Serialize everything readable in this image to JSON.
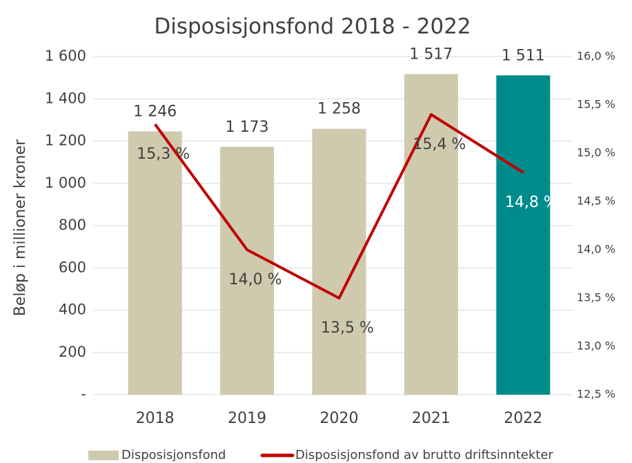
{
  "chart_data": {
    "type": "bar",
    "title": "Disposisjonsfond 2018 - 2022",
    "y_axis_label": "Beløp i millioner kroner",
    "categories": [
      "2018",
      "2019",
      "2020",
      "2021",
      "2022"
    ],
    "series": [
      {
        "name": "Disposisjonsfond",
        "type": "bar",
        "color": "#cfc9ae",
        "colors": [
          "#cfc9ae",
          "#cfc9ae",
          "#cfc9ae",
          "#cfc9ae",
          "#008b8b"
        ],
        "values": [
          1246,
          1173,
          1258,
          1517,
          1511
        ],
        "value_labels": [
          "1 246",
          "1 173",
          "1 258",
          "1 517",
          "1 511"
        ]
      },
      {
        "name": "Disposisjonsfond av brutto driftsinntekter",
        "type": "line",
        "axis": "y2",
        "color": "#c00000",
        "values": [
          15.3,
          14.0,
          13.5,
          15.4,
          14.8
        ],
        "value_labels": [
          "15,3 %",
          "14,0 %",
          "13,5 %",
          "15,4 %",
          "14,8 %"
        ]
      }
    ],
    "ylim": [
      0,
      1600
    ],
    "yticks": [
      {
        "value": 0,
        "label": "-"
      },
      200,
      400,
      600,
      800,
      {
        "value": 1000,
        "label": "1 000"
      },
      {
        "value": 1200,
        "label": "1 200"
      },
      {
        "value": 1400,
        "label": "1 400"
      },
      {
        "value": 1600,
        "label": "1 600"
      }
    ],
    "y2lim": [
      12.5,
      16.0
    ],
    "y2ticks": [
      {
        "value": 12.5,
        "label": "12,5 %"
      },
      {
        "value": 13.0,
        "label": "13,0 %"
      },
      {
        "value": 13.5,
        "label": "13,5 %"
      },
      {
        "value": 14.0,
        "label": "14,0 %"
      },
      {
        "value": 14.5,
        "label": "14,5 %"
      },
      {
        "value": 15.0,
        "label": "15,0 %"
      },
      {
        "value": 15.5,
        "label": "15,5 %"
      },
      {
        "value": 16.0,
        "label": "16,0 %"
      }
    ],
    "grid": true,
    "legend": "bottom"
  }
}
